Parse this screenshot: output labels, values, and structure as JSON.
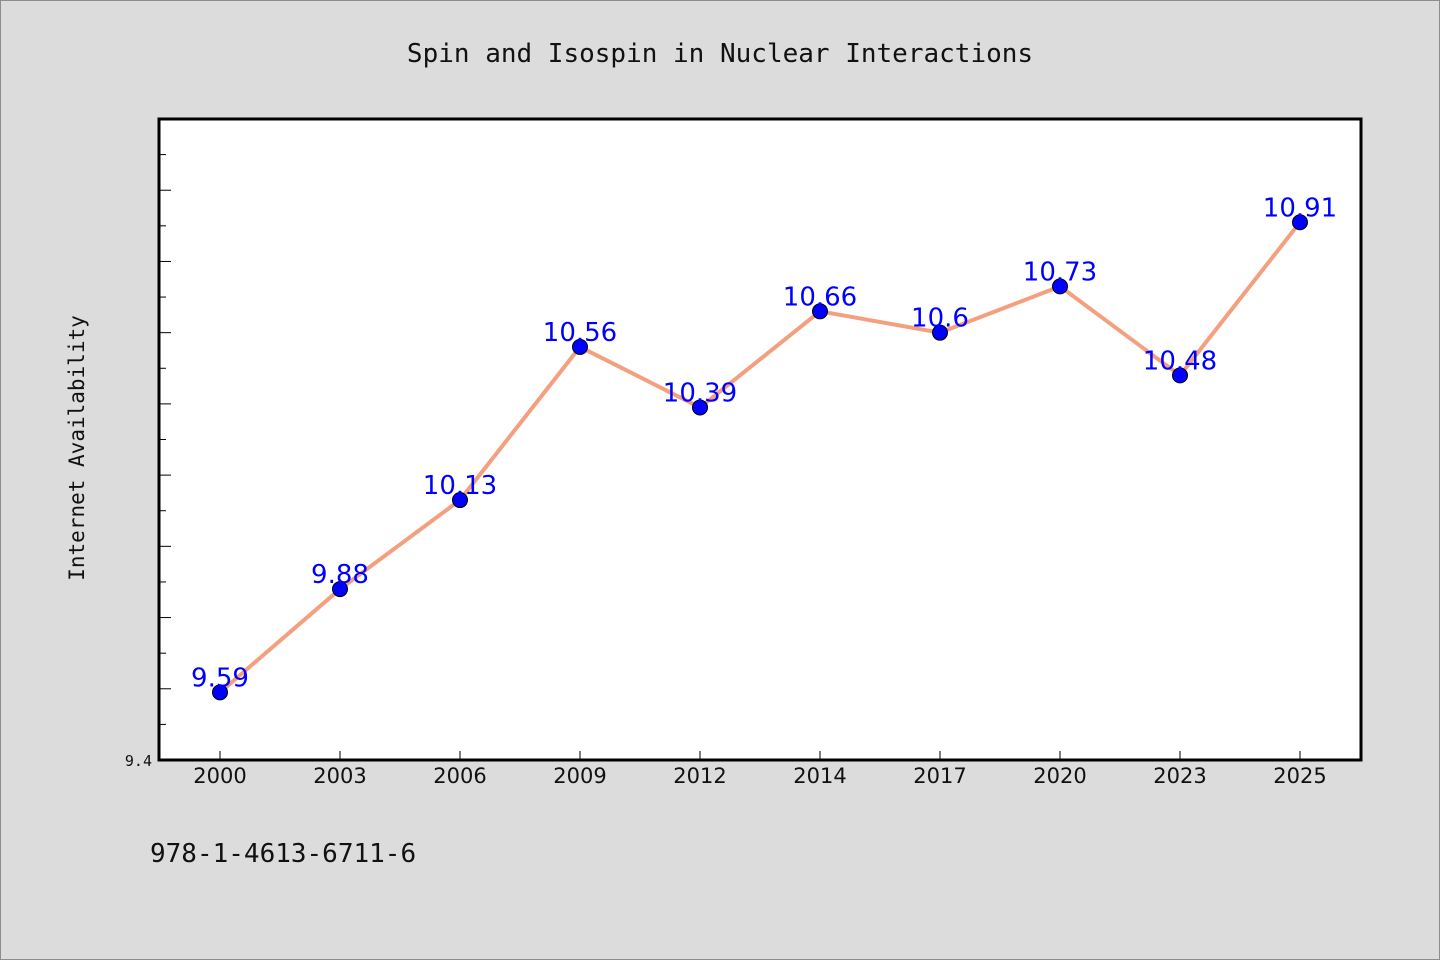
{
  "chart_data": {
    "type": "line",
    "title": "Spin and Isospin in Nuclear Interactions",
    "xlabel": "",
    "ylabel": "Internet Availability",
    "categories": [
      "2000",
      "2003",
      "2006",
      "2009",
      "2012",
      "2014",
      "2017",
      "2020",
      "2023",
      "2025"
    ],
    "series": [
      {
        "values": [
          9.59,
          9.88,
          10.13,
          10.56,
          10.39,
          10.66,
          10.6,
          10.73,
          10.48,
          10.91
        ],
        "labels": [
          "9.59",
          "9.88",
          "10.13",
          "10.56",
          "10.39",
          "10.66",
          "10.6",
          "10.73",
          "10.48",
          "10.91"
        ],
        "line_color": "#f4a07f",
        "marker_color": "#0000ff"
      }
    ],
    "ylim": [
      9.4,
      11.2
    ],
    "y_tick_labels": [
      "9.4"
    ],
    "grid": false,
    "legend": "none"
  },
  "footer_code": "978-1-4613-6711-6"
}
